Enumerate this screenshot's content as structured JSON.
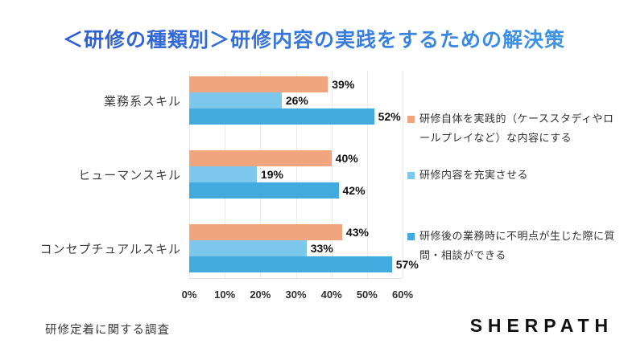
{
  "title": "＜研修の種類別＞研修内容の実践をするための解決策",
  "title_colors": {
    "from": "#2d55d1",
    "to": "#3f9cea"
  },
  "chart_data": {
    "type": "bar",
    "orientation": "horizontal",
    "title": "＜研修の種類別＞研修内容の実践をするための解決策",
    "categories": [
      "業務系スキル",
      "ヒューマンスキル",
      "コンセプチュアルスキル"
    ],
    "series": [
      {
        "name": "研修自体を実践的（ケーススタディやロールプレイなど）な内容にする",
        "color": "#f1a57e",
        "values": [
          39,
          40,
          43
        ]
      },
      {
        "name": "研修内容を充実させる",
        "color": "#7cc7ec",
        "values": [
          26,
          19,
          33
        ]
      },
      {
        "name": "研修後の業務時に不明点が生じた際に質問・相談ができる",
        "color": "#41abdf",
        "values": [
          52,
          42,
          57
        ]
      }
    ],
    "unit": "%",
    "xlim": [
      0,
      60
    ],
    "x_ticks": [
      "0%",
      "10%",
      "20%",
      "30%",
      "40%",
      "50%",
      "60%"
    ],
    "grid": true,
    "legend_position": "right"
  },
  "footer": {
    "source": "研修定着に関する調査",
    "logo": "SHERPATH"
  }
}
